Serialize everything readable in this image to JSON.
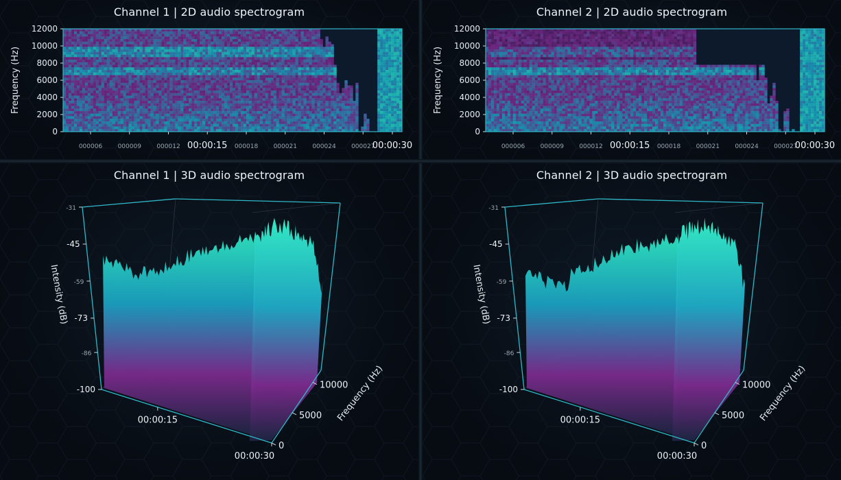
{
  "panels": [
    {
      "title": "Channel 1 | 2D audio spectrogram"
    },
    {
      "title": "Channel 2 | 2D audio spectrogram"
    },
    {
      "title": "Channel 1 | 3D audio spectrogram"
    },
    {
      "title": "Channel 2 | 3D audio spectrogram"
    }
  ],
  "colors": {
    "background": "#070b12",
    "axis": "#2fb8c8",
    "low_intensity": "#7b2a8c",
    "mid_intensity": "#1aa0c0",
    "high_intensity": "#2fe6c0"
  },
  "chart_data": [
    {
      "type": "heatmap",
      "title": "Channel 1 | 2D audio spectrogram",
      "ylabel": "Frequency (Hz)",
      "ylim": [
        0,
        12000
      ],
      "yticks": [
        "0",
        "2000",
        "4000",
        "6000",
        "8000",
        "10000",
        "12000"
      ],
      "xticks": [
        "000006",
        "000009",
        "000012",
        "00:00:15",
        "000018",
        "000021",
        "000024",
        "000027",
        "00:00:30"
      ],
      "x_major_ticks": [
        "00:00:15",
        "00:00:30"
      ]
    },
    {
      "type": "heatmap",
      "title": "Channel 2 | 2D audio spectrogram",
      "ylabel": "Frequency (Hz)",
      "ylim": [
        0,
        12000
      ],
      "yticks": [
        "0",
        "2000",
        "4000",
        "6000",
        "8000",
        "10000",
        "12000"
      ],
      "xticks": [
        "000006",
        "000009",
        "000012",
        "00:00:15",
        "000018",
        "000021",
        "000024",
        "000027",
        "00:00:30"
      ],
      "x_major_ticks": [
        "00:00:15",
        "00:00:30"
      ]
    },
    {
      "type": "area",
      "title": "Channel 1 | 3D audio spectrogram",
      "ylabel": "Intensity (dB)",
      "zlabel": "Frequency (Hz)",
      "ylim": [
        -100,
        -31
      ],
      "yticks": [
        "-31",
        "-45",
        "-59",
        "-73",
        "-86",
        "-100"
      ],
      "xticks": [
        "00:00:15",
        "00:00:30"
      ],
      "zticks": [
        "0",
        "5000",
        "10000"
      ]
    },
    {
      "type": "area",
      "title": "Channel 2 | 3D audio spectrogram",
      "ylabel": "Intensity (dB)",
      "zlabel": "Frequency (Hz)",
      "ylim": [
        -100,
        -31
      ],
      "yticks": [
        "-31",
        "-45",
        "-59",
        "-73",
        "-86",
        "-100"
      ],
      "xticks": [
        "00:00:15",
        "00:00:30"
      ],
      "zticks": [
        "0",
        "5000",
        "10000"
      ]
    }
  ]
}
